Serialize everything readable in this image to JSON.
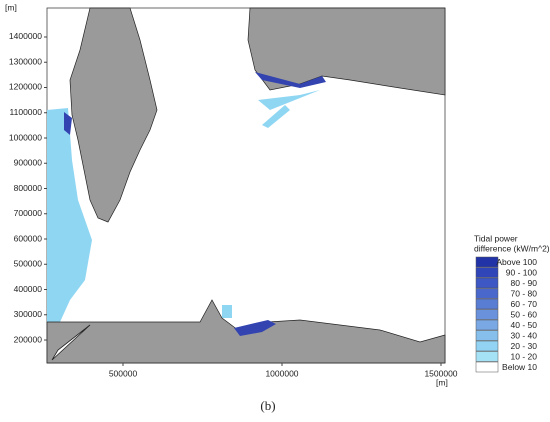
{
  "map": {
    "y_label": "[m]",
    "x_label": "[m]",
    "xlim": [
      261000,
      1512600
    ],
    "ylim": [
      109000,
      1514800
    ],
    "xticks": [
      500000,
      1000000,
      1500000
    ],
    "yticks": [
      200000,
      300000,
      400000,
      500000,
      600000,
      700000,
      800000,
      900000,
      1000000,
      1100000,
      1200000,
      1300000,
      1400000
    ]
  },
  "legend": {
    "title": [
      "Tidal power",
      "difference (kW/m^2)"
    ],
    "entries": [
      {
        "label": "Above 100",
        "color": "#2233a8"
      },
      {
        "label": "90 - 100",
        "color": "#2f45b8"
      },
      {
        "label": "80 - 90",
        "color": "#3d57c4"
      },
      {
        "label": "70 - 80",
        "color": "#4a68cc"
      },
      {
        "label": "60 - 70",
        "color": "#5a7dd4"
      },
      {
        "label": "50 - 60",
        "color": "#6a92dc"
      },
      {
        "label": "40 - 50",
        "color": "#7aa8e4"
      },
      {
        "label": "30 - 40",
        "color": "#86bfec"
      },
      {
        "label": "20 - 30",
        "color": "#92d2f2"
      },
      {
        "label": "10 - 20",
        "color": "#a6e2f6"
      },
      {
        "label": "Below  10",
        "color": "#ffffff"
      }
    ]
  },
  "caption": "(b)"
}
